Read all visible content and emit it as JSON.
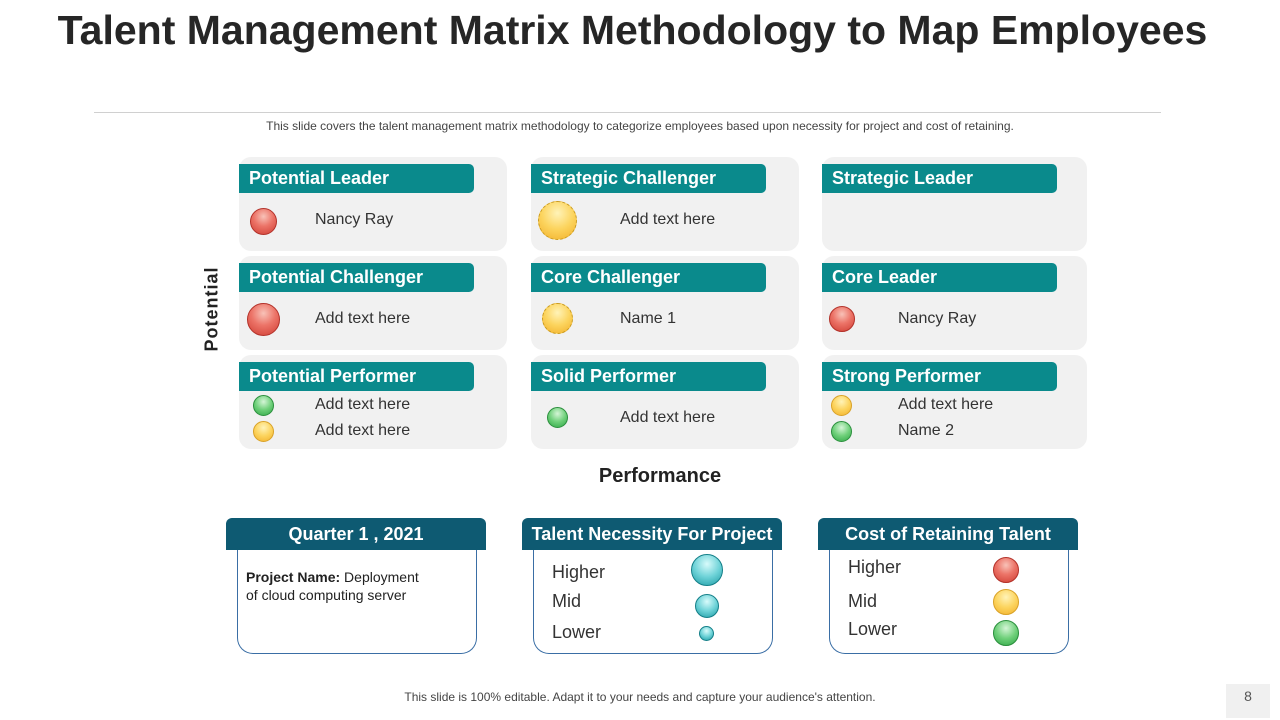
{
  "title": "Talent Management Matrix Methodology to Map Employees",
  "subtitle": "This slide covers the talent management matrix methodology to categorize employees based upon necessity for project and cost of retaining.",
  "matrix": {
    "y_axis_label": "Potential",
    "x_axis_label": "Performance",
    "cells": [
      {
        "title": "Potential Leader",
        "entries": [
          "Nancy Ray"
        ],
        "dots": [
          "red"
        ]
      },
      {
        "title": "Strategic Challenger",
        "entries": [
          "Add text here"
        ],
        "dots": [
          "yellow"
        ]
      },
      {
        "title": "Strategic Leader",
        "entries": [],
        "dots": []
      },
      {
        "title": "Potential Challenger",
        "entries": [
          "Add text here"
        ],
        "dots": [
          "red"
        ]
      },
      {
        "title": "Core Challenger",
        "entries": [
          "Name 1"
        ],
        "dots": [
          "yellow"
        ]
      },
      {
        "title": "Core Leader",
        "entries": [
          "Nancy Ray"
        ],
        "dots": [
          "red"
        ]
      },
      {
        "title": "Potential Performer",
        "entries": [
          "Add text here",
          "Add text here"
        ],
        "dots": [
          "green",
          "yellow"
        ]
      },
      {
        "title": "Solid Performer",
        "entries": [
          "Add text here"
        ],
        "dots": [
          "green"
        ]
      },
      {
        "title": "Strong Performer",
        "entries": [
          "Add text here",
          "Name 2"
        ],
        "dots": [
          "yellow",
          "green"
        ]
      }
    ]
  },
  "cards": {
    "quarter": {
      "title": "Quarter 1 , 2021",
      "project_label": "Project Name:",
      "project_line1": "Deployment",
      "project_line2": "of cloud computing server"
    },
    "necessity": {
      "title": "Talent Necessity For Project",
      "levels": [
        "Higher",
        "Mid",
        "Lower"
      ]
    },
    "cost": {
      "title": "Cost of Retaining Talent",
      "levels": [
        "Higher",
        "Mid",
        "Lower"
      ]
    }
  },
  "colors": {
    "cell_header": "#0a8a8c",
    "card_header": "#0e5a72",
    "red": "#e8655a",
    "yellow": "#fcd45e",
    "green": "#5cc56b",
    "teal": "#4cc3ca"
  },
  "footer": "This slide is 100% editable. Adapt it to your needs and capture your audience's attention.",
  "page_number": "8"
}
